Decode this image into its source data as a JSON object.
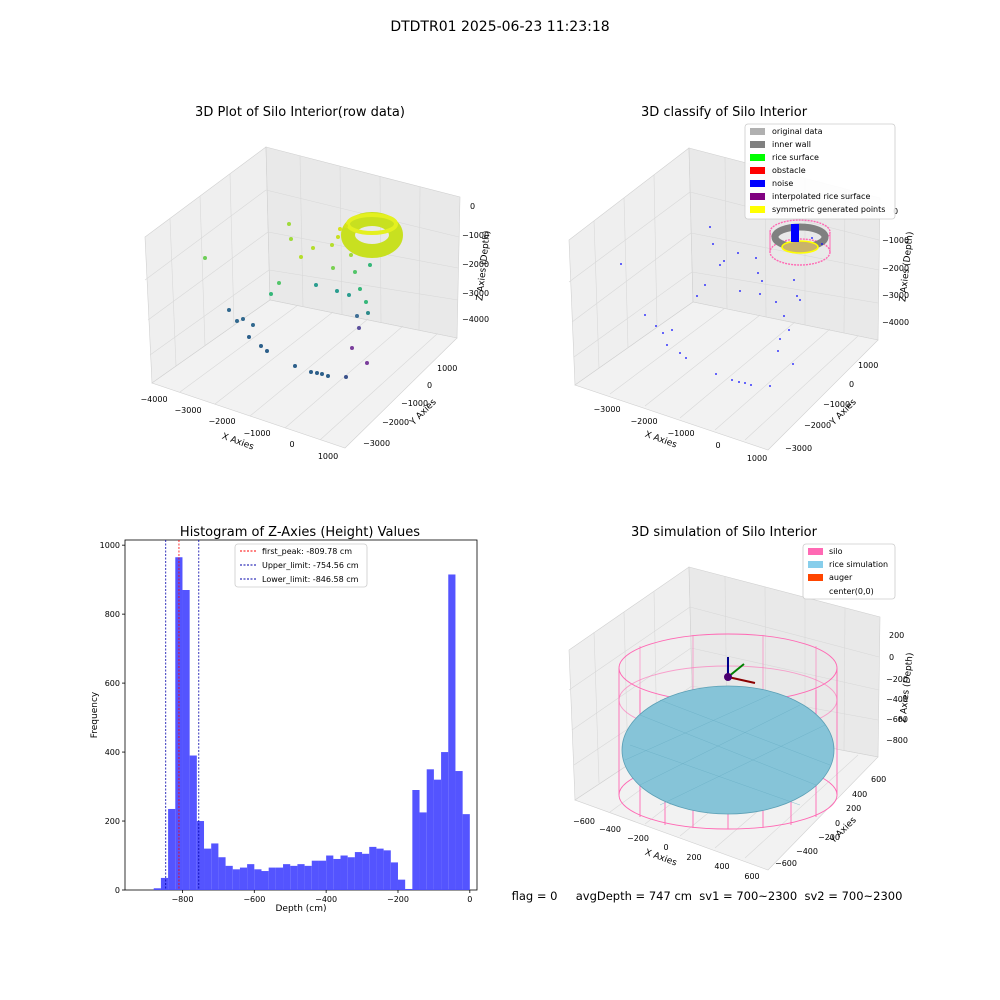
{
  "figure_title": "DTDTR01 2025-06-23 11:23:18",
  "footer_text": "flag = 0     avgDepth = 747 cm  sv1 = 700~2300  sv2 = 700~2300",
  "chart_data": [
    {
      "type": "scatter3d",
      "title": "3D Plot of Silo Interior(row data)",
      "xlabel": "X Axies",
      "ylabel": "Y Axies",
      "zlabel": "Z Axies (Depth)",
      "x_ticks": [
        "−4000",
        "−3000",
        "−2000",
        "−1000",
        "0",
        "1000"
      ],
      "y_ticks": [
        "−3000",
        "−2000",
        "−1000",
        "0",
        "1000"
      ],
      "z_ticks": [
        "0",
        "−1000",
        "−2000",
        "−3000",
        "−4000"
      ],
      "colormap": "viridis"
    },
    {
      "type": "scatter3d",
      "title": "3D classify of Silo Interior",
      "xlabel": "X Axies",
      "ylabel": "Y Axies",
      "zlabel": "Z Axies (Depth)",
      "x_ticks": [
        "−3000",
        "−2000",
        "−1000",
        "0",
        "1000"
      ],
      "y_ticks": [
        "−3000",
        "−2000",
        "−1000",
        "0",
        "1000"
      ],
      "z_ticks": [
        "0",
        "−1000",
        "−2000",
        "−3000",
        "−4000"
      ],
      "legend_position": "top-right",
      "legend": [
        {
          "label": "original data",
          "color": "#b0b0b0"
        },
        {
          "label": "inner wall",
          "color": "#808080"
        },
        {
          "label": "rice surface",
          "color": "#00ff00"
        },
        {
          "label": "obstacle",
          "color": "#ff0000"
        },
        {
          "label": "noise",
          "color": "#0000ff"
        },
        {
          "label": "interpolated rice surface",
          "color": "#800080"
        },
        {
          "label": "symmetric generated points",
          "color": "#ffff00"
        }
      ]
    },
    {
      "type": "bar",
      "title": "Histogram of Z-Axies (Height) Values",
      "xlabel": "Depth (cm)",
      "ylabel": "Frequency",
      "bar_color": "#4b4bff",
      "xlim": [
        -960,
        20
      ],
      "ylim": [
        0,
        1015
      ],
      "x_ticks": [
        "−800",
        "−600",
        "−400",
        "−200",
        "0"
      ],
      "x_tick_values": [
        -800,
        -600,
        -400,
        -200,
        0
      ],
      "y_ticks": [
        "0",
        "200",
        "400",
        "600",
        "800",
        "1000"
      ],
      "y_tick_values": [
        0,
        200,
        400,
        600,
        800,
        1000
      ],
      "bin_edges": [
        -860,
        -840,
        -820,
        -800,
        -780,
        -760,
        -740,
        -720,
        -700,
        -680,
        -660,
        -640,
        -620,
        -600,
        -580,
        -560,
        -540,
        -520,
        -500,
        -480,
        -460,
        -440,
        -420,
        -400,
        -380,
        -360,
        -340,
        -320,
        -300,
        -280,
        -260,
        -240,
        -220,
        -200,
        -180,
        -160,
        -140,
        -120,
        -100,
        -80,
        -60,
        -40,
        -20,
        0
      ],
      "extra_bins": [
        {
          "x0": -880,
          "x1": -860,
          "count": 5
        },
        {
          "x0": -860,
          "x1": -840,
          "count": 35
        },
        {
          "x0": -840,
          "x1": -820,
          "count": 235
        },
        {
          "x0": -820,
          "x1": -800,
          "count": 965
        },
        {
          "x0": -800,
          "x1": -780,
          "count": 870
        },
        {
          "x0": -780,
          "x1": -760,
          "count": 390
        },
        {
          "x0": -760,
          "x1": -740,
          "count": 200
        },
        {
          "x0": -740,
          "x1": -720,
          "count": 120
        },
        {
          "x0": -720,
          "x1": -700,
          "count": 135
        },
        {
          "x0": -700,
          "x1": -680,
          "count": 95
        },
        {
          "x0": -680,
          "x1": -660,
          "count": 70
        },
        {
          "x0": -660,
          "x1": -640,
          "count": 60
        },
        {
          "x0": -640,
          "x1": -620,
          "count": 65
        },
        {
          "x0": -620,
          "x1": -600,
          "count": 75
        },
        {
          "x0": -600,
          "x1": -580,
          "count": 60
        },
        {
          "x0": -580,
          "x1": -560,
          "count": 55
        },
        {
          "x0": -560,
          "x1": -540,
          "count": 65
        },
        {
          "x0": -540,
          "x1": -520,
          "count": 65
        },
        {
          "x0": -520,
          "x1": -500,
          "count": 75
        },
        {
          "x0": -500,
          "x1": -480,
          "count": 70
        },
        {
          "x0": -480,
          "x1": -460,
          "count": 75
        },
        {
          "x0": -460,
          "x1": -440,
          "count": 70
        },
        {
          "x0": -440,
          "x1": -420,
          "count": 85
        },
        {
          "x0": -420,
          "x1": -400,
          "count": 85
        },
        {
          "x0": -400,
          "x1": -380,
          "count": 100
        },
        {
          "x0": -380,
          "x1": -360,
          "count": 90
        },
        {
          "x0": -360,
          "x1": -340,
          "count": 100
        },
        {
          "x0": -340,
          "x1": -320,
          "count": 95
        },
        {
          "x0": -320,
          "x1": -300,
          "count": 110
        },
        {
          "x0": -300,
          "x1": -280,
          "count": 105
        },
        {
          "x0": -280,
          "x1": -260,
          "count": 125
        },
        {
          "x0": -260,
          "x1": -240,
          "count": 120
        },
        {
          "x0": -240,
          "x1": -220,
          "count": 115
        },
        {
          "x0": -220,
          "x1": -200,
          "count": 80
        },
        {
          "x0": -200,
          "x1": -180,
          "count": 30
        },
        {
          "x0": -180,
          "x1": -160,
          "count": 3
        },
        {
          "x0": -160,
          "x1": -140,
          "count": 290
        },
        {
          "x0": -140,
          "x1": -120,
          "count": 225
        },
        {
          "x0": -120,
          "x1": -100,
          "count": 350
        },
        {
          "x0": -100,
          "x1": -80,
          "count": 320
        },
        {
          "x0": -80,
          "x1": -60,
          "count": 400
        },
        {
          "x0": -60,
          "x1": -40,
          "count": 915
        },
        {
          "x0": -40,
          "x1": -20,
          "count": 345
        },
        {
          "x0": -20,
          "x1": 0,
          "count": 220
        }
      ],
      "vlines": [
        {
          "x": -809.78,
          "color": "#ff0000",
          "label": "first_peak: -809.78 cm"
        },
        {
          "x": -754.56,
          "color": "#0000aa",
          "label": "Upper_limit: -754.56 cm"
        },
        {
          "x": -846.58,
          "color": "#0000aa",
          "label": "Lower_limit: -846.58 cm"
        }
      ],
      "legend_position": "top-center"
    },
    {
      "type": "surface3d",
      "title": "3D simulation of Silo Interior",
      "xlabel": "X Axies",
      "ylabel": "Y Axies",
      "zlabel": "Z Axies (Depth)",
      "x_ticks": [
        "−600",
        "−400",
        "−200",
        "0",
        "200",
        "400",
        "600"
      ],
      "y_ticks": [
        "−600",
        "−400",
        "−200",
        "0",
        "200",
        "400",
        "600"
      ],
      "z_ticks": [
        "200",
        "0",
        "−200",
        "−400",
        "−600",
        "−800"
      ],
      "legend_position": "top-right",
      "legend": [
        {
          "label": "silo",
          "color": "#ff69b4"
        },
        {
          "label": "rice simulation",
          "color": "#87ceeb"
        },
        {
          "label": "auger",
          "color": "#ff4500"
        },
        {
          "label": "center(0,0)",
          "color": ""
        }
      ]
    }
  ]
}
